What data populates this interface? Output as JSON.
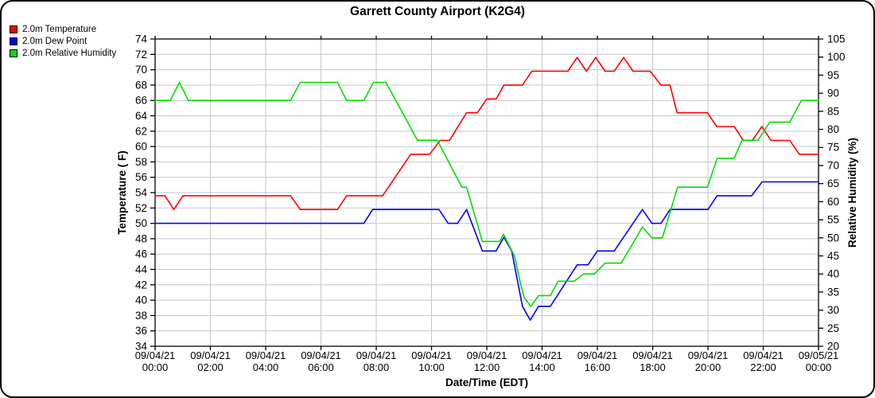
{
  "title": "Garrett County Airport (K2G4)",
  "legend": [
    {
      "label": "2.0m Temperature",
      "color": "#ff0000"
    },
    {
      "label": "2.0m Dew Point",
      "color": "#0000ff"
    },
    {
      "label": "2.0m Relative Humidity",
      "color": "#00dd00"
    }
  ],
  "chart_data": {
    "type": "line",
    "title": "Garrett County Airport (K2G4)",
    "xlabel": "Date/Time (EDT)",
    "ylabel_left": "Temperature ( F)",
    "ylabel_right": "Relative Humidity (%)",
    "x_unit": "hours since 09/04/21 00:00 EDT",
    "x_range": [
      0,
      24
    ],
    "x_ticks": [
      {
        "hour": 0,
        "date": "09/04/21",
        "time": "00:00"
      },
      {
        "hour": 2,
        "date": "09/04/21",
        "time": "02:00"
      },
      {
        "hour": 4,
        "date": "09/04/21",
        "time": "04:00"
      },
      {
        "hour": 6,
        "date": "09/04/21",
        "time": "06:00"
      },
      {
        "hour": 8,
        "date": "09/04/21",
        "time": "08:00"
      },
      {
        "hour": 10,
        "date": "09/04/21",
        "time": "10:00"
      },
      {
        "hour": 12,
        "date": "09/04/21",
        "time": "12:00"
      },
      {
        "hour": 14,
        "date": "09/04/21",
        "time": "14:00"
      },
      {
        "hour": 16,
        "date": "09/04/21",
        "time": "16:00"
      },
      {
        "hour": 18,
        "date": "09/04/21",
        "time": "18:00"
      },
      {
        "hour": 20,
        "date": "09/04/21",
        "time": "20:00"
      },
      {
        "hour": 22,
        "date": "09/04/21",
        "time": "22:00"
      },
      {
        "hour": 24,
        "date": "09/05/21",
        "time": "00:00"
      }
    ],
    "y_left": {
      "label": "Temperature ( F)",
      "range": [
        34,
        74
      ],
      "tick_step": 2
    },
    "y_right": {
      "label": "Relative Humidity (%)",
      "range": [
        20,
        105
      ],
      "tick_step": 5
    },
    "grid": true,
    "grid_color": "#c6c6c6",
    "axis_color": "#000000",
    "legend_position": "top-left",
    "series": [
      {
        "name": "2.0m Temperature",
        "axis": "left",
        "unit": "F",
        "color": "#ff0000",
        "points": [
          [
            0,
            53.6
          ],
          [
            0.35,
            53.6
          ],
          [
            0.68,
            51.8
          ],
          [
            1.0,
            53.6
          ],
          [
            4.9,
            53.6
          ],
          [
            5.25,
            51.8
          ],
          [
            6.6,
            51.8
          ],
          [
            6.93,
            53.6
          ],
          [
            8.23,
            53.6
          ],
          [
            9.25,
            59
          ],
          [
            9.93,
            59
          ],
          [
            10.31,
            60.8
          ],
          [
            10.65,
            60.8
          ],
          [
            11.27,
            64.4
          ],
          [
            11.66,
            64.4
          ],
          [
            12.0,
            66.2
          ],
          [
            12.34,
            66.2
          ],
          [
            12.62,
            68
          ],
          [
            13.29,
            68
          ],
          [
            13.63,
            69.8
          ],
          [
            14.93,
            69.8
          ],
          [
            15.27,
            71.6
          ],
          [
            15.6,
            69.8
          ],
          [
            15.94,
            71.6
          ],
          [
            16.28,
            69.8
          ],
          [
            16.61,
            69.8
          ],
          [
            16.95,
            71.6
          ],
          [
            17.29,
            69.8
          ],
          [
            17.91,
            69.8
          ],
          [
            18.3,
            68
          ],
          [
            18.63,
            68
          ],
          [
            18.88,
            64.4
          ],
          [
            19.98,
            64.4
          ],
          [
            20.32,
            62.6
          ],
          [
            20.95,
            62.6
          ],
          [
            21.28,
            60.8
          ],
          [
            21.6,
            60.8
          ],
          [
            21.95,
            62.6
          ],
          [
            22.28,
            60.8
          ],
          [
            22.96,
            60.8
          ],
          [
            23.3,
            59
          ],
          [
            24,
            59
          ]
        ]
      },
      {
        "name": "2.0m Dew Point",
        "axis": "left",
        "unit": "F",
        "color": "#0000ff",
        "points": [
          [
            0,
            50
          ],
          [
            7.55,
            50
          ],
          [
            7.87,
            51.8
          ],
          [
            10.27,
            51.8
          ],
          [
            10.6,
            50
          ],
          [
            10.94,
            50
          ],
          [
            11.27,
            51.8
          ],
          [
            11.84,
            46.4
          ],
          [
            12.33,
            46.4
          ],
          [
            12.62,
            48.2
          ],
          [
            12.9,
            46.4
          ],
          [
            13.29,
            39.2
          ],
          [
            13.57,
            37.4
          ],
          [
            13.87,
            39.2
          ],
          [
            14.3,
            39.2
          ],
          [
            15.27,
            44.6
          ],
          [
            15.66,
            44.6
          ],
          [
            16.0,
            46.4
          ],
          [
            16.61,
            46.4
          ],
          [
            17.63,
            51.8
          ],
          [
            17.97,
            50
          ],
          [
            18.3,
            50
          ],
          [
            18.63,
            51.8
          ],
          [
            20.0,
            51.8
          ],
          [
            20.33,
            53.6
          ],
          [
            21.58,
            53.6
          ],
          [
            21.96,
            55.4
          ],
          [
            24,
            55.4
          ]
        ]
      },
      {
        "name": "2.0m Relative Humidity",
        "axis": "right",
        "unit": "%",
        "color": "#00dd00",
        "points": [
          [
            0,
            88
          ],
          [
            0.55,
            88
          ],
          [
            0.88,
            93
          ],
          [
            1.2,
            88
          ],
          [
            4.9,
            88
          ],
          [
            5.25,
            93
          ],
          [
            6.6,
            93
          ],
          [
            6.93,
            88
          ],
          [
            7.55,
            88
          ],
          [
            7.9,
            93
          ],
          [
            8.35,
            93
          ],
          [
            9.49,
            77
          ],
          [
            10.21,
            77
          ],
          [
            11.1,
            64
          ],
          [
            11.27,
            64
          ],
          [
            11.84,
            49
          ],
          [
            12.47,
            49
          ],
          [
            12.6,
            51
          ],
          [
            13.0,
            45
          ],
          [
            13.2,
            38
          ],
          [
            13.35,
            33.5
          ],
          [
            13.59,
            31
          ],
          [
            13.87,
            34
          ],
          [
            14.3,
            34
          ],
          [
            14.58,
            38
          ],
          [
            15.16,
            38
          ],
          [
            15.5,
            40
          ],
          [
            15.89,
            40
          ],
          [
            16.28,
            43
          ],
          [
            16.86,
            43
          ],
          [
            17.25,
            48
          ],
          [
            17.63,
            53
          ],
          [
            17.97,
            50
          ],
          [
            18.35,
            50
          ],
          [
            18.9,
            64
          ],
          [
            19.98,
            64
          ],
          [
            20.33,
            72
          ],
          [
            20.95,
            72
          ],
          [
            21.23,
            77
          ],
          [
            21.81,
            77
          ],
          [
            22.24,
            82
          ],
          [
            22.96,
            82
          ],
          [
            23.38,
            88
          ],
          [
            24,
            88
          ]
        ]
      }
    ]
  }
}
